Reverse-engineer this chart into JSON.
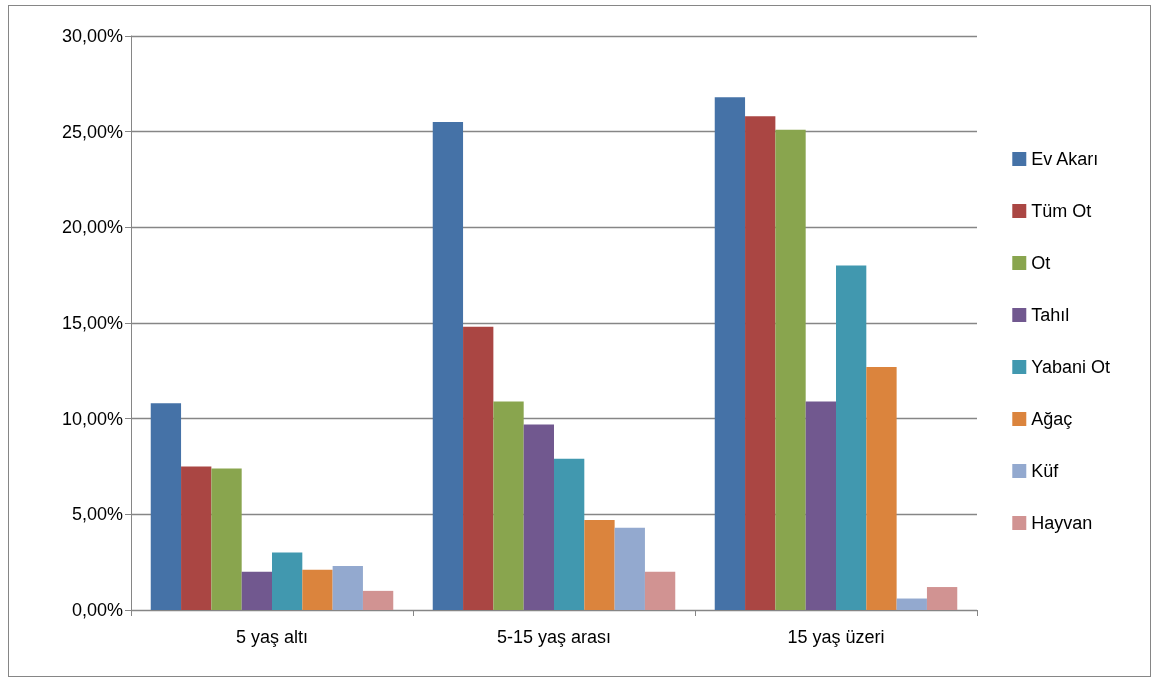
{
  "chart_data": {
    "type": "bar",
    "categories": [
      "5 yaş altı",
      "5-15 yaş arası",
      "15 yaş üzeri"
    ],
    "series": [
      {
        "name": "Ev Akarı",
        "color": "#4572a7",
        "values": [
          10.8,
          25.5,
          26.8
        ]
      },
      {
        "name": "Tüm Ot",
        "color": "#aa4643",
        "values": [
          7.5,
          14.8,
          25.8
        ]
      },
      {
        "name": "Ot",
        "color": "#89a54e",
        "values": [
          7.4,
          10.9,
          25.1
        ]
      },
      {
        "name": "Tahıl",
        "color": "#71588f",
        "values": [
          2.0,
          9.7,
          10.9
        ]
      },
      {
        "name": "Yabani Ot",
        "color": "#4198af",
        "values": [
          3.0,
          7.9,
          18.0
        ]
      },
      {
        "name": "Ağaç",
        "color": "#db843d",
        "values": [
          2.1,
          4.7,
          12.7
        ]
      },
      {
        "name": "Küf",
        "color": "#93a9cf",
        "values": [
          2.3,
          4.3,
          0.6
        ]
      },
      {
        "name": "Hayvan",
        "color": "#d19392",
        "values": [
          1.0,
          2.0,
          1.2
        ]
      }
    ],
    "ylim": [
      0,
      30
    ],
    "yticks": [
      {
        "value": 0,
        "label": "0,00%"
      },
      {
        "value": 5,
        "label": "5,00%"
      },
      {
        "value": 10,
        "label": "10,00%"
      },
      {
        "value": 15,
        "label": "15,00%"
      },
      {
        "value": 20,
        "label": "20,00%"
      },
      {
        "value": 25,
        "label": "25,00%"
      },
      {
        "value": 30,
        "label": "30,00%"
      }
    ],
    "grid": "y",
    "legend": "right"
  }
}
